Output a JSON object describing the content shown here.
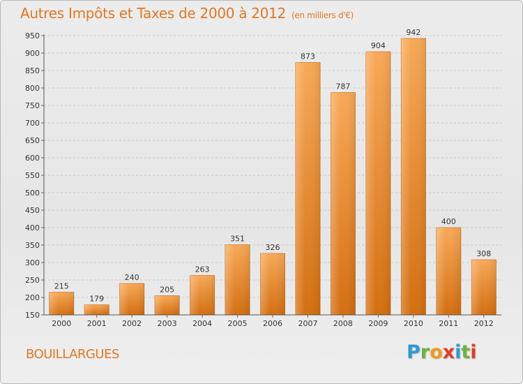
{
  "header": {
    "title": "Autres Impôts et Taxes de 2000 à 2012",
    "subtitle": "(en milliers d'€)"
  },
  "footer": {
    "commune": "BOUILLARGUES",
    "logo": "Proxiti"
  },
  "colors": {
    "title": "#e07824",
    "bar_light": "#f7a553",
    "bar_dark": "#d56f12"
  },
  "chart_data": {
    "type": "bar",
    "title": "Autres Impôts et Taxes de 2000 à 2012",
    "subtitle": "(en milliers d'€)",
    "xlabel": "",
    "ylabel": "",
    "categories": [
      "2000",
      "2001",
      "2002",
      "2003",
      "2004",
      "2005",
      "2006",
      "2007",
      "2008",
      "2009",
      "2010",
      "2011",
      "2012"
    ],
    "values": [
      215,
      179,
      240,
      205,
      263,
      351,
      326,
      873,
      787,
      904,
      942,
      400,
      308
    ],
    "ylim": [
      150,
      950
    ],
    "yticks": [
      150,
      200,
      250,
      300,
      350,
      400,
      450,
      500,
      550,
      600,
      650,
      700,
      750,
      800,
      850,
      900,
      950
    ],
    "grid": "horizontal dashed",
    "legend": "none"
  }
}
